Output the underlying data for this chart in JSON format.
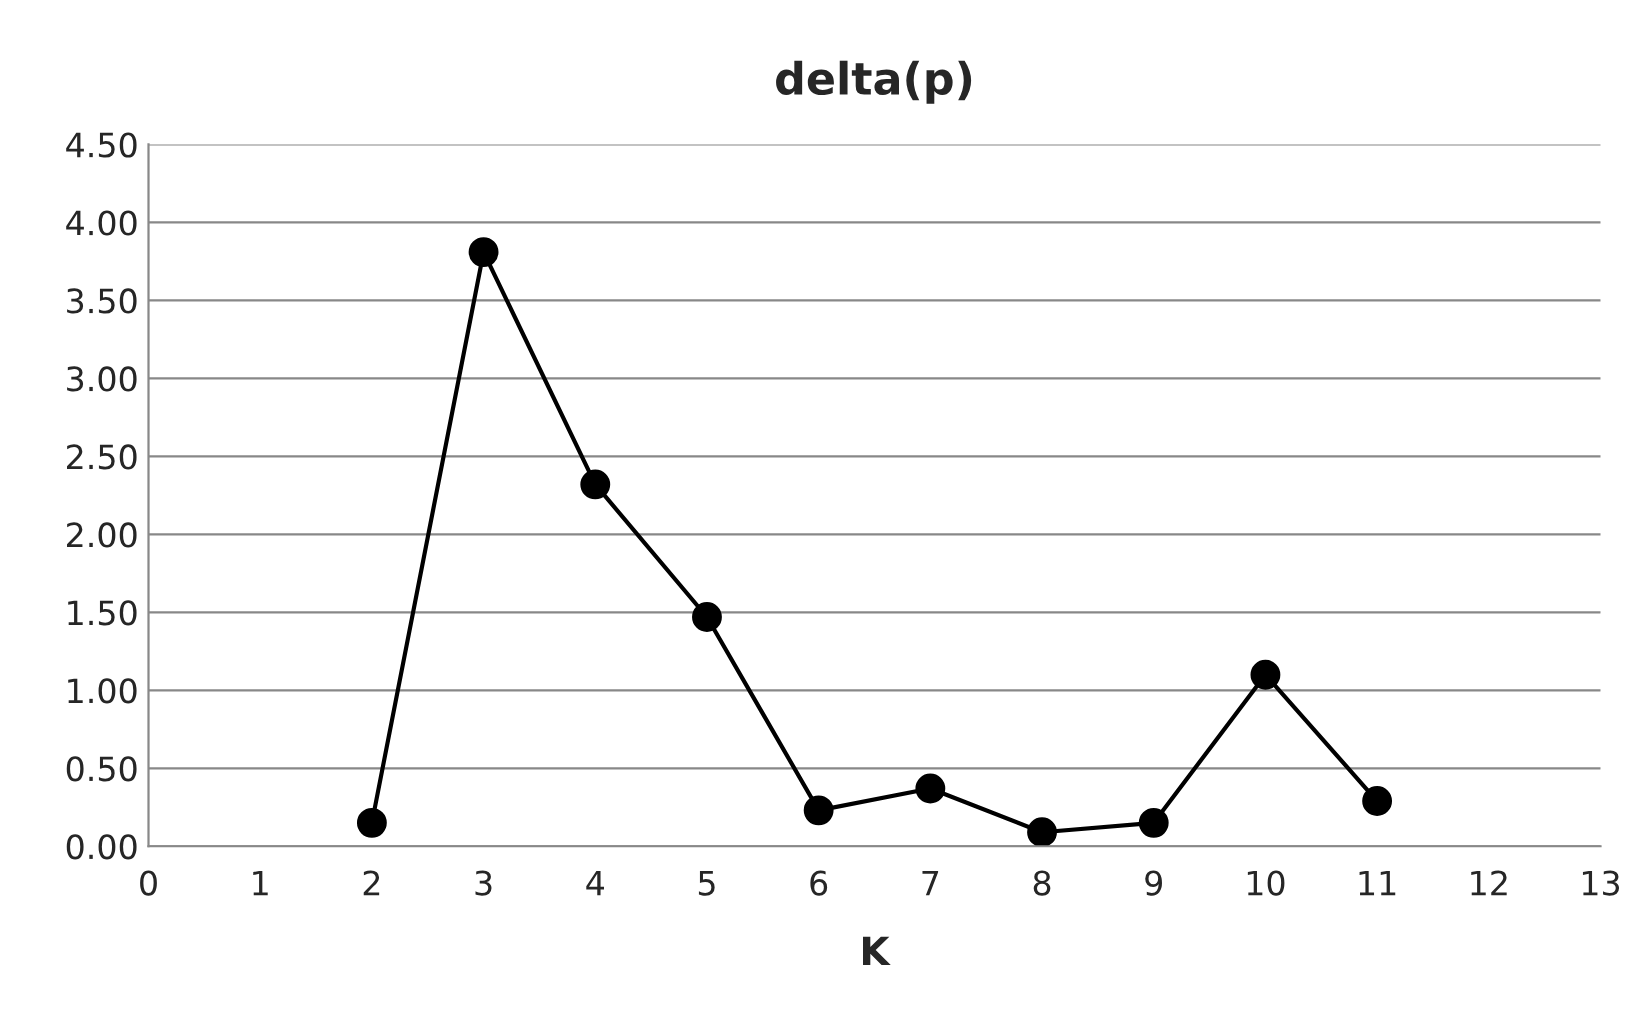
{
  "chart_data": {
    "type": "line",
    "title": "delta(p)",
    "xlabel": "K",
    "x": [
      2,
      3,
      4,
      5,
      6,
      7,
      8,
      9,
      10,
      11
    ],
    "series": [
      {
        "color": "#000000",
        "values": [
          0.15,
          3.81,
          2.32,
          1.47,
          0.23,
          0.37,
          0.09,
          0.15,
          1.1,
          0.29
        ]
      }
    ],
    "xlim": [
      0,
      13
    ],
    "xticks": [
      0,
      1,
      2,
      3,
      4,
      5,
      6,
      7,
      8,
      9,
      10,
      11,
      12,
      13
    ],
    "ylim": [
      0,
      4.5
    ],
    "yticks": [
      {
        "value": 0,
        "label": "0.00"
      },
      {
        "value": 0.5,
        "label": "0.50"
      },
      {
        "value": 1,
        "label": "1.00"
      },
      {
        "value": 1.5,
        "label": "1.50"
      },
      {
        "value": 2,
        "label": "2.00"
      },
      {
        "value": 2.5,
        "label": "2.50"
      },
      {
        "value": 3,
        "label": "3.00"
      },
      {
        "value": 3.5,
        "label": "3.50"
      },
      {
        "value": 4,
        "label": "4.00"
      },
      {
        "value": 4.5,
        "label": "4.50"
      }
    ],
    "grid": "y",
    "marker": "circle",
    "line_style": "solid",
    "legend": false
  }
}
